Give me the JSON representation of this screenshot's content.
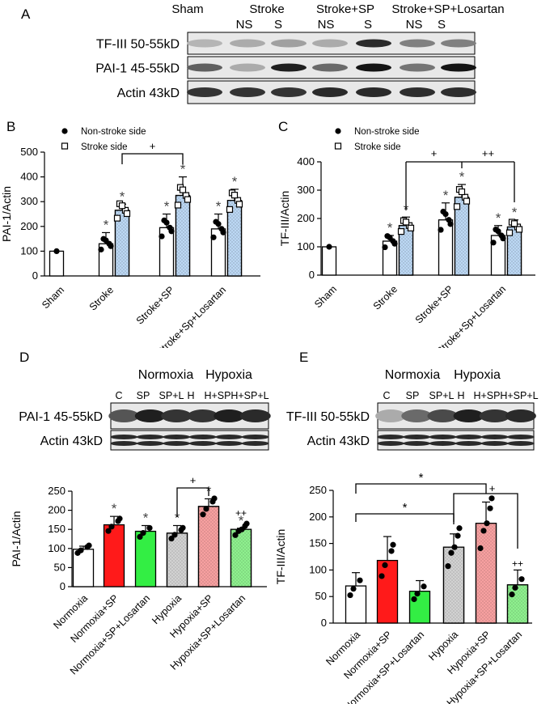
{
  "colors": {
    "bar_outline": "#000000",
    "stroke_side_fill": "#bcd8f4",
    "red": "#ff1a1a",
    "green": "#33ee44",
    "grey": "#d2d2d2",
    "pink": "#f7a0a0",
    "lightgreen": "#8ef08e",
    "white": "#ffffff"
  },
  "panel_a": {
    "letter": "A",
    "groups": [
      "Sham",
      "Stroke",
      "Stroke+SP",
      "Stroke+SP+Losartan"
    ],
    "sides": [
      "NS",
      "S",
      "NS",
      "S",
      "NS",
      "S"
    ],
    "bands": [
      "TF-III 50-55kD",
      "PAI-1 45-55kD",
      "Actin 43kD"
    ],
    "intensity": {
      "tf": [
        0.25,
        0.3,
        0.35,
        0.3,
        0.9,
        0.5,
        0.5
      ],
      "pai": [
        0.65,
        0.3,
        0.95,
        0.6,
        1.0,
        0.55,
        1.0
      ],
      "actin": [
        0.85,
        0.85,
        0.85,
        0.9,
        0.9,
        0.88,
        0.88
      ]
    }
  },
  "panel_d_blot": {
    "letter": "D",
    "conditions": [
      "Normoxia",
      "Hypoxia"
    ],
    "lanes": [
      "C",
      "SP",
      "SP+L",
      "H",
      "H+SP",
      "H+SP+L"
    ],
    "bands": [
      "PAI-1 45-55kD",
      "Actin 43kD"
    ],
    "intensity": {
      "pai": [
        0.7,
        0.95,
        0.85,
        0.85,
        0.95,
        0.9
      ],
      "actin": [
        0.9,
        0.9,
        0.9,
        0.9,
        0.9,
        0.9
      ]
    }
  },
  "panel_e_blot": {
    "letter": "E",
    "conditions": [
      "Normoxia",
      "Hypoxia"
    ],
    "lanes": [
      "C",
      "SP",
      "SP+L",
      "H",
      "H+SP",
      "H+SP+L"
    ],
    "bands": [
      "TF-III 50-55kD",
      "Actin 43kD"
    ],
    "intensity": {
      "tf": [
        0.3,
        0.6,
        0.75,
        0.95,
        0.85,
        0.9
      ],
      "actin": [
        0.9,
        0.9,
        0.9,
        0.9,
        0.9,
        0.9
      ]
    }
  },
  "chart_data": [
    {
      "id": "B",
      "type": "bar",
      "letter": "B",
      "ylabel": "PAI-1/Actin",
      "ylim": [
        0,
        500
      ],
      "yticks": [
        0,
        100,
        200,
        300,
        400,
        500
      ],
      "categories": [
        "Sham",
        "Stroke",
        "Stroke+SP",
        "Stroke+Sp+Losartan"
      ],
      "legend": [
        "Non-stroke side",
        "Stroke side"
      ],
      "series": [
        {
          "values": [
            100,
            130,
            195,
            190
          ],
          "err": [
            0,
            45,
            55,
            60
          ]
        },
        {
          "values": [
            null,
            265,
            325,
            305
          ],
          "err": [
            null,
            25,
            75,
            45
          ]
        }
      ],
      "bracket_label": "+",
      "star": "*"
    },
    {
      "id": "C",
      "type": "bar",
      "letter": "C",
      "ylabel": "TF-III/Actin",
      "ylim": [
        0,
        400
      ],
      "yticks": [
        0,
        100,
        200,
        300,
        400
      ],
      "categories": [
        "Sham",
        "Stroke",
        "Stroke+SP",
        "Stroke+Sp+Losartan"
      ],
      "legend": [
        "Non-stroke side",
        "Stroke side"
      ],
      "series": [
        {
          "values": [
            100,
            120,
            195,
            140
          ],
          "err": [
            0,
            20,
            60,
            35
          ]
        },
        {
          "values": [
            null,
            175,
            275,
            170
          ],
          "err": [
            null,
            30,
            45,
            25
          ]
        }
      ],
      "bracket_labels": [
        "+",
        "++"
      ],
      "star": "*"
    },
    {
      "id": "D",
      "type": "bar",
      "ylabel": "PAI-1/Actin",
      "ylim": [
        0,
        250
      ],
      "yticks": [
        0,
        50,
        100,
        150,
        200,
        250
      ],
      "categories": [
        "Normoxia",
        "Normoxia+SP",
        "Normoxia+SP+Losartan",
        "Hypoxia",
        "Hypoxia+SP",
        "Hypoxia+SP+Losartan"
      ],
      "values": [
        98,
        162,
        145,
        140,
        210,
        150
      ],
      "err": [
        8,
        22,
        15,
        20,
        20,
        3
      ],
      "bracket_label": "+",
      "marks": [
        "",
        "*",
        "*",
        "*",
        "*",
        "++ *"
      ]
    },
    {
      "id": "E",
      "type": "bar",
      "ylabel": "TF-III/Actin",
      "ylim": [
        0,
        250
      ],
      "yticks": [
        0,
        50,
        100,
        150,
        200,
        250
      ],
      "categories": [
        "Normoxia",
        "Normoxia+SP",
        "Normoxia+SP+Losartan",
        "Hypoxia",
        "Hypoxia+SP",
        "Hypoxia+SP+Losartan"
      ],
      "values": [
        70,
        118,
        60,
        143,
        188,
        72
      ],
      "err": [
        25,
        45,
        20,
        25,
        40,
        28
      ],
      "bracket_labels": [
        "*",
        "*",
        "+"
      ],
      "marks": [
        "",
        "",
        "",
        "",
        "",
        "++"
      ]
    }
  ]
}
